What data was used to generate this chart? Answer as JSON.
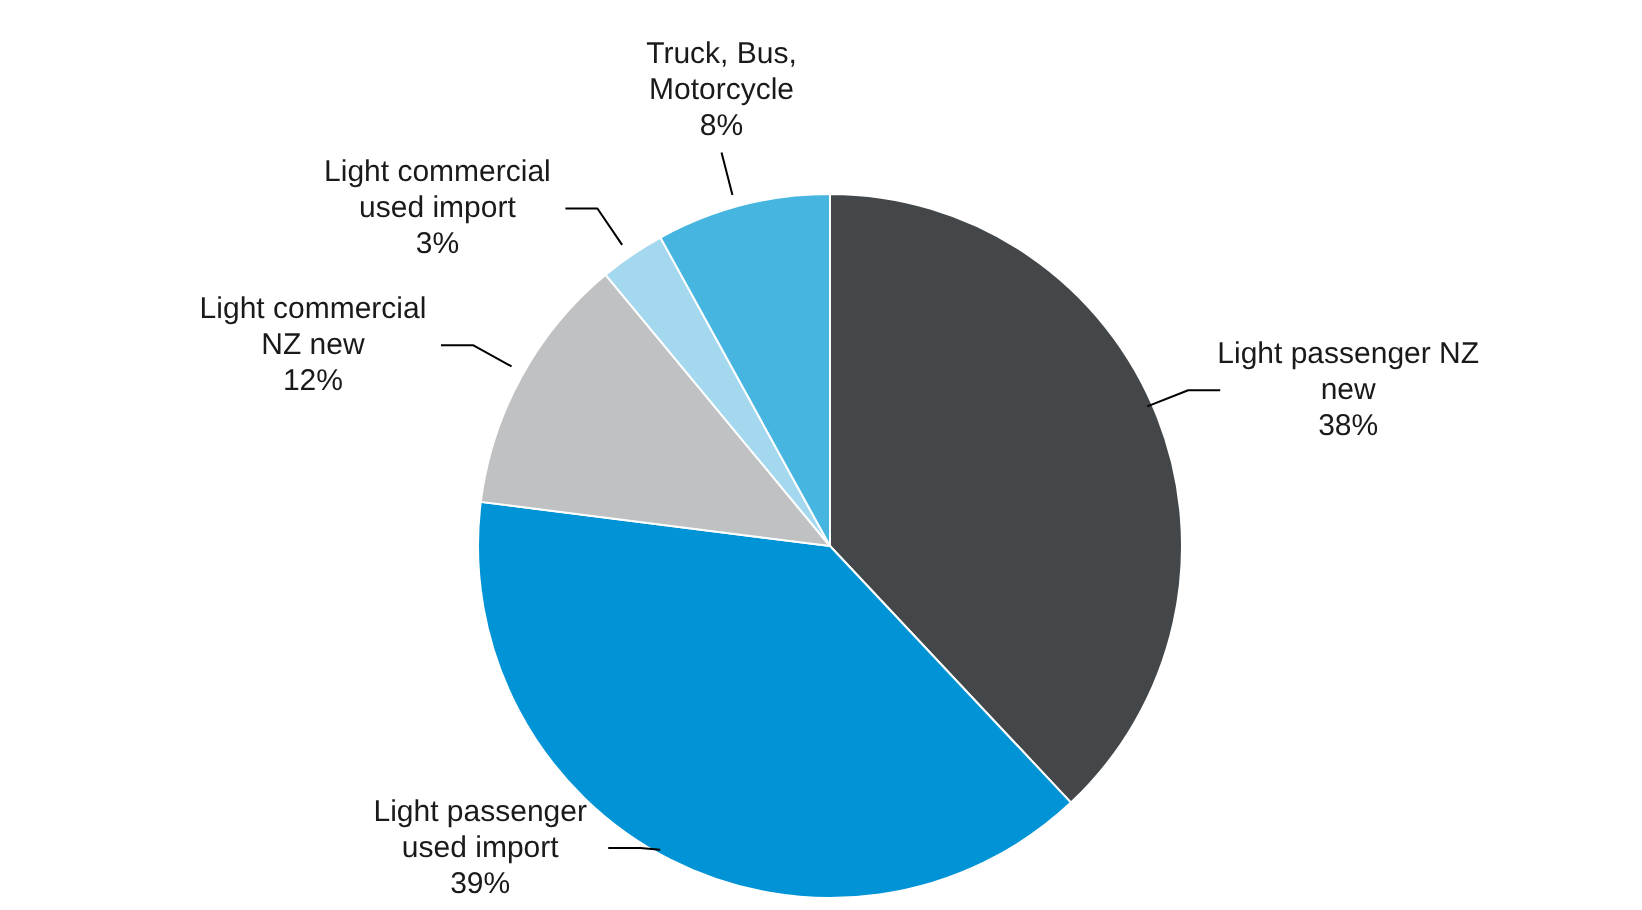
{
  "chart_data": {
    "type": "pie",
    "categories": [
      "Light passenger NZ\nnew",
      "Light passenger\nused import",
      "Light commercial\nNZ new",
      "Light commercial\nused import",
      "Truck, Bus,\nMotorcycle"
    ],
    "values": [
      38,
      39,
      12,
      3,
      8
    ],
    "value_labels": [
      "38%",
      "39%",
      "12%",
      "3%",
      "8%"
    ],
    "colors": [
      "#434749",
      "#0093d5",
      "#bfc1c2",
      "#a3d8ef",
      "#46b5e0"
    ],
    "legend": false
  }
}
